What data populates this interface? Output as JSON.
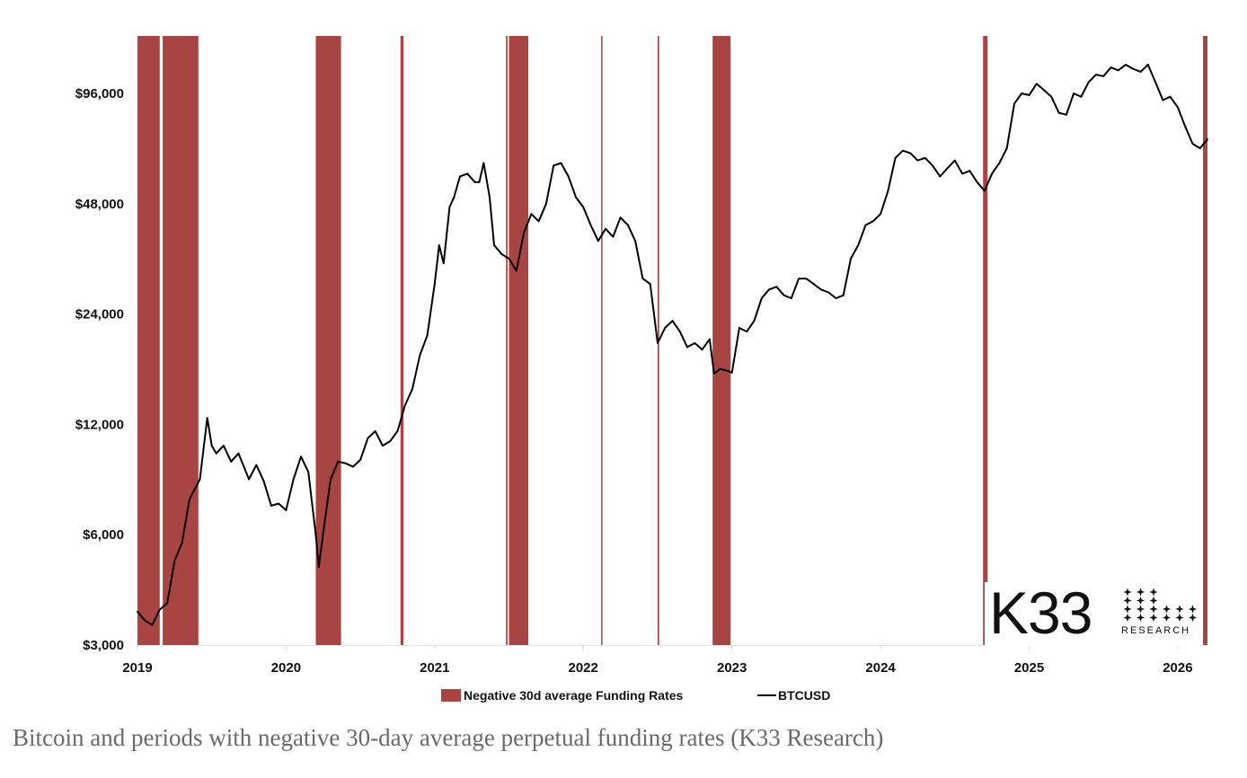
{
  "chart_data": {
    "type": "line",
    "title": "",
    "xlabel": "",
    "ylabel": "",
    "yscale": "log",
    "ylim": [
      3000,
      140000
    ],
    "xlim": [
      2019.0,
      2026.2
    ],
    "y_ticks": [
      {
        "value": 3000,
        "label": "$3,000"
      },
      {
        "value": 6000,
        "label": "$6,000"
      },
      {
        "value": 12000,
        "label": "$12,000"
      },
      {
        "value": 24000,
        "label": "$24,000"
      },
      {
        "value": 48000,
        "label": "$48,000"
      },
      {
        "value": 96000,
        "label": "$96,000"
      }
    ],
    "x_ticks": [
      {
        "value": 2019,
        "label": "2019"
      },
      {
        "value": 2020,
        "label": "2020"
      },
      {
        "value": 2021,
        "label": "2021"
      },
      {
        "value": 2022,
        "label": "2022"
      },
      {
        "value": 2023,
        "label": "2023"
      },
      {
        "value": 2024,
        "label": "2024"
      },
      {
        "value": 2025,
        "label": "2025"
      },
      {
        "value": 2026,
        "label": "2026"
      }
    ],
    "legend": {
      "placement": "bottom-center",
      "entries": [
        {
          "name": "Negative 30d average Funding Rates",
          "kind": "band",
          "color": "#a84442"
        },
        {
          "name": "BTCUSD",
          "kind": "line",
          "color": "#000000"
        }
      ]
    },
    "negative_funding_periods": [
      [
        2019.0,
        2019.15
      ],
      [
        2019.17,
        2019.41
      ],
      [
        2020.2,
        2020.37
      ],
      [
        2020.77,
        2020.79
      ],
      [
        2021.48,
        2021.49
      ],
      [
        2021.5,
        2021.63
      ],
      [
        2022.12,
        2022.125
      ],
      [
        2022.5,
        2022.51
      ],
      [
        2022.87,
        2022.99
      ],
      [
        2024.69,
        2024.72
      ],
      [
        2026.17,
        2026.2
      ]
    ],
    "series": [
      {
        "name": "BTCUSD",
        "color": "#000000",
        "x": [
          2019.0,
          2019.05,
          2019.1,
          2019.15,
          2019.2,
          2019.25,
          2019.3,
          2019.35,
          2019.42,
          2019.47,
          2019.5,
          2019.53,
          2019.58,
          2019.63,
          2019.68,
          2019.75,
          2019.8,
          2019.85,
          2019.9,
          2019.95,
          2020.0,
          2020.05,
          2020.1,
          2020.15,
          2020.2,
          2020.22,
          2020.26,
          2020.3,
          2020.35,
          2020.4,
          2020.45,
          2020.5,
          2020.55,
          2020.6,
          2020.65,
          2020.7,
          2020.75,
          2020.8,
          2020.85,
          2020.9,
          2020.95,
          2021.0,
          2021.03,
          2021.06,
          2021.1,
          2021.13,
          2021.17,
          2021.22,
          2021.27,
          2021.3,
          2021.33,
          2021.37,
          2021.4,
          2021.45,
          2021.5,
          2021.55,
          2021.6,
          2021.65,
          2021.7,
          2021.75,
          2021.8,
          2021.85,
          2021.9,
          2021.95,
          2022.0,
          2022.05,
          2022.1,
          2022.15,
          2022.2,
          2022.25,
          2022.3,
          2022.35,
          2022.4,
          2022.45,
          2022.5,
          2022.55,
          2022.6,
          2022.65,
          2022.7,
          2022.75,
          2022.8,
          2022.85,
          2022.88,
          2022.92,
          2022.97,
          2023.0,
          2023.05,
          2023.1,
          2023.15,
          2023.2,
          2023.25,
          2023.3,
          2023.35,
          2023.4,
          2023.45,
          2023.5,
          2023.55,
          2023.6,
          2023.65,
          2023.7,
          2023.75,
          2023.8,
          2023.85,
          2023.9,
          2023.95,
          2024.0,
          2024.05,
          2024.1,
          2024.15,
          2024.2,
          2024.25,
          2024.3,
          2024.35,
          2024.4,
          2024.45,
          2024.5,
          2024.55,
          2024.6,
          2024.65,
          2024.7,
          2024.75,
          2024.8,
          2024.85,
          2024.9,
          2024.95,
          2025.0,
          2025.05,
          2025.1,
          2025.15,
          2025.2,
          2025.25,
          2025.3,
          2025.35,
          2025.4,
          2025.45,
          2025.5,
          2025.55,
          2025.6,
          2025.65,
          2025.7,
          2025.75,
          2025.8,
          2025.85,
          2025.9,
          2025.95,
          2026.0,
          2026.05,
          2026.1,
          2026.15,
          2026.2
        ],
        "values": [
          3700,
          3500,
          3400,
          3750,
          3900,
          5100,
          5700,
          7500,
          8500,
          12500,
          10500,
          10000,
          10500,
          9500,
          10000,
          8500,
          9300,
          8400,
          7200,
          7300,
          7000,
          8500,
          9800,
          8900,
          6000,
          4900,
          6500,
          8500,
          9500,
          9400,
          9200,
          9600,
          11000,
          11500,
          10500,
          10800,
          11500,
          13500,
          15000,
          18500,
          21000,
          29000,
          37000,
          33000,
          47000,
          50000,
          57000,
          58000,
          55000,
          55000,
          62000,
          50000,
          37000,
          35000,
          34000,
          31500,
          40000,
          45000,
          43000,
          48000,
          61000,
          62000,
          57000,
          50000,
          47000,
          42000,
          38000,
          41000,
          39000,
          44000,
          42000,
          38000,
          30000,
          29000,
          20000,
          22000,
          23000,
          21500,
          19500,
          20000,
          19200,
          20500,
          16500,
          17000,
          16800,
          16600,
          22000,
          21500,
          23000,
          26500,
          28000,
          28500,
          27000,
          26500,
          30000,
          30000,
          29000,
          28000,
          27500,
          26500,
          27000,
          34000,
          37000,
          42000,
          43000,
          45000,
          52000,
          64000,
          67000,
          66000,
          63000,
          64000,
          61000,
          57000,
          60000,
          63000,
          58000,
          59000,
          55000,
          52000,
          58000,
          62000,
          68000,
          90000,
          96000,
          95000,
          102000,
          98000,
          94000,
          85000,
          84000,
          96000,
          94000,
          103000,
          108000,
          107000,
          113000,
          111000,
          115000,
          112000,
          110000,
          115000,
          103000,
          92000,
          94000,
          88000,
          78000,
          70000,
          68000,
          72000
        ]
      }
    ]
  },
  "logo": {
    "main": "K33",
    "sub": "RESEARCH"
  },
  "caption": "Bitcoin and periods with negative 30-day average perpetual funding rates (K33 Research)"
}
